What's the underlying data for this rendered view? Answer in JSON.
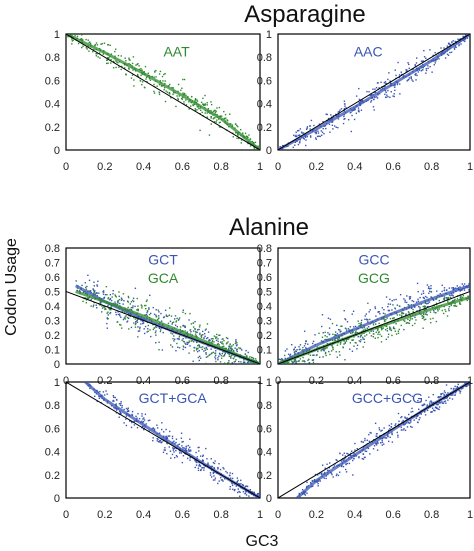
{
  "colors": {
    "green": "#2f8a2f",
    "blue": "#3a55b4",
    "fit": "#000000",
    "axis": "#000000"
  },
  "chart_data": [
    {
      "type": "scatter",
      "section": "Asparagine",
      "panel": "top-left",
      "xlim": [
        0,
        1
      ],
      "ylim": [
        0,
        1
      ],
      "xticks": [
        "0",
        "0.2",
        "0.4",
        "0.6",
        "0.8",
        "1"
      ],
      "yticks": [
        "0",
        "0.2",
        "0.4",
        "0.6",
        "0.8",
        "1"
      ],
      "grid": false,
      "series": [
        {
          "name": "AAT",
          "color": "#2f8a2f",
          "trend": [
            [
              0.0,
              1.0
            ],
            [
              0.2,
              0.84
            ],
            [
              0.4,
              0.66
            ],
            [
              0.6,
              0.47
            ],
            [
              0.8,
              0.27
            ],
            [
              1.0,
              0.0
            ]
          ],
          "spread": 0.05,
          "n": 420
        }
      ],
      "reference_line": [
        [
          0,
          1
        ],
        [
          1,
          0
        ]
      ]
    },
    {
      "type": "scatter",
      "section": "Asparagine",
      "panel": "top-right",
      "xlim": [
        0,
        1
      ],
      "ylim": [
        0,
        1
      ],
      "xticks": [
        "0",
        "0.2",
        "0.4",
        "0.6",
        "0.8",
        "1"
      ],
      "yticks": [
        "0",
        "0.2",
        "0.4",
        "0.6",
        "0.8",
        "1"
      ],
      "grid": false,
      "series": [
        {
          "name": "AAC",
          "color": "#3a55b4",
          "trend": [
            [
              0.0,
              0.0
            ],
            [
              0.2,
              0.18
            ],
            [
              0.4,
              0.37
            ],
            [
              0.6,
              0.57
            ],
            [
              0.8,
              0.77
            ],
            [
              1.0,
              1.0
            ]
          ],
          "spread": 0.05,
          "n": 420
        }
      ],
      "reference_line": [
        [
          0,
          0
        ],
        [
          1,
          1
        ]
      ]
    },
    {
      "type": "scatter",
      "section": "Alanine",
      "panel": "middle-left",
      "xlim": [
        0,
        1
      ],
      "ylim": [
        0,
        1
      ],
      "xticks": [
        "0",
        "0.2",
        "0.4",
        "0.6",
        "0.8",
        "1"
      ],
      "yticks": [
        "0",
        "0.1",
        "0.2",
        "0.3",
        "0.4",
        "0.5",
        "0.6",
        "0.7",
        "0.8"
      ],
      "grid": false,
      "series": [
        {
          "name": "GCT",
          "color": "#3a55b4",
          "trend": [
            [
              0.05,
              0.54
            ],
            [
              0.2,
              0.43
            ],
            [
              0.4,
              0.31
            ],
            [
              0.6,
              0.2
            ],
            [
              0.8,
              0.1
            ],
            [
              1.0,
              0.0
            ]
          ],
          "spread": 0.06,
          "n": 380
        },
        {
          "name": "GCA",
          "color": "#2f8a2f",
          "trend": [
            [
              0.05,
              0.5
            ],
            [
              0.2,
              0.43
            ],
            [
              0.4,
              0.33
            ],
            [
              0.6,
              0.22
            ],
            [
              0.8,
              0.11
            ],
            [
              1.0,
              0.0
            ]
          ],
          "spread": 0.06,
          "n": 380
        }
      ],
      "reference_line": [
        [
          0,
          0.5
        ],
        [
          1,
          0
        ]
      ]
    },
    {
      "type": "scatter",
      "section": "Alanine",
      "panel": "middle-right",
      "xlim": [
        0,
        1
      ],
      "ylim": [
        0,
        1
      ],
      "xticks": [
        "0",
        "0.2",
        "0.4",
        "0.6",
        "0.8",
        "1"
      ],
      "yticks": [
        "0",
        "0.1",
        "0.2",
        "0.3",
        "0.4",
        "0.5",
        "0.6",
        "0.7",
        "0.8"
      ],
      "grid": false,
      "series": [
        {
          "name": "GCC",
          "color": "#3a55b4",
          "trend": [
            [
              0.0,
              0.0
            ],
            [
              0.2,
              0.13
            ],
            [
              0.4,
              0.24
            ],
            [
              0.6,
              0.35
            ],
            [
              0.8,
              0.45
            ],
            [
              1.0,
              0.54
            ]
          ],
          "spread": 0.06,
          "n": 380
        },
        {
          "name": "GCG",
          "color": "#2f8a2f",
          "trend": [
            [
              0.0,
              0.0
            ],
            [
              0.2,
              0.1
            ],
            [
              0.4,
              0.2
            ],
            [
              0.6,
              0.29
            ],
            [
              0.8,
              0.38
            ],
            [
              1.0,
              0.46
            ]
          ],
          "spread": 0.05,
          "n": 380
        }
      ],
      "reference_line": [
        [
          0,
          0
        ],
        [
          1,
          0.5
        ]
      ]
    },
    {
      "type": "scatter",
      "section": "Alanine",
      "panel": "bottom-left",
      "xlim": [
        0,
        1
      ],
      "ylim": [
        0,
        1
      ],
      "xticks": [
        "0",
        "0.2",
        "0.4",
        "0.6",
        "0.8",
        "1"
      ],
      "yticks": [
        "0",
        "0.2",
        "0.4",
        "0.6",
        "0.8",
        "1"
      ],
      "grid": false,
      "series": [
        {
          "name": "GCT+GCA",
          "color": "#3a55b4",
          "trend": [
            [
              0.1,
              1.0
            ],
            [
              0.2,
              0.85
            ],
            [
              0.4,
              0.63
            ],
            [
              0.6,
              0.41
            ],
            [
              0.8,
              0.2
            ],
            [
              1.0,
              0.0
            ]
          ],
          "spread": 0.05,
          "n": 420
        }
      ],
      "reference_line": [
        [
          0,
          1
        ],
        [
          1,
          0
        ]
      ]
    },
    {
      "type": "scatter",
      "section": "Alanine",
      "panel": "bottom-right",
      "xlim": [
        0,
        1
      ],
      "ylim": [
        0,
        1
      ],
      "xticks": [
        "0",
        "0.2",
        "0.4",
        "0.6",
        "0.8",
        "1"
      ],
      "yticks": [
        "0",
        "0.2",
        "0.4",
        "0.6",
        "0.8",
        "1"
      ],
      "grid": false,
      "series": [
        {
          "name": "GCC+GCG",
          "color": "#3a55b4",
          "trend": [
            [
              0.1,
              0.0
            ],
            [
              0.2,
              0.15
            ],
            [
              0.4,
              0.37
            ],
            [
              0.6,
              0.59
            ],
            [
              0.8,
              0.8
            ],
            [
              1.0,
              1.0
            ]
          ],
          "spread": 0.05,
          "n": 420
        }
      ],
      "reference_line": [
        [
          0,
          0
        ],
        [
          1,
          1
        ]
      ]
    }
  ],
  "titles": {
    "asparagine": "Asparagine",
    "alanine": "Alanine"
  },
  "axis_labels": {
    "x": "GC3",
    "y": "Codon Usage"
  }
}
